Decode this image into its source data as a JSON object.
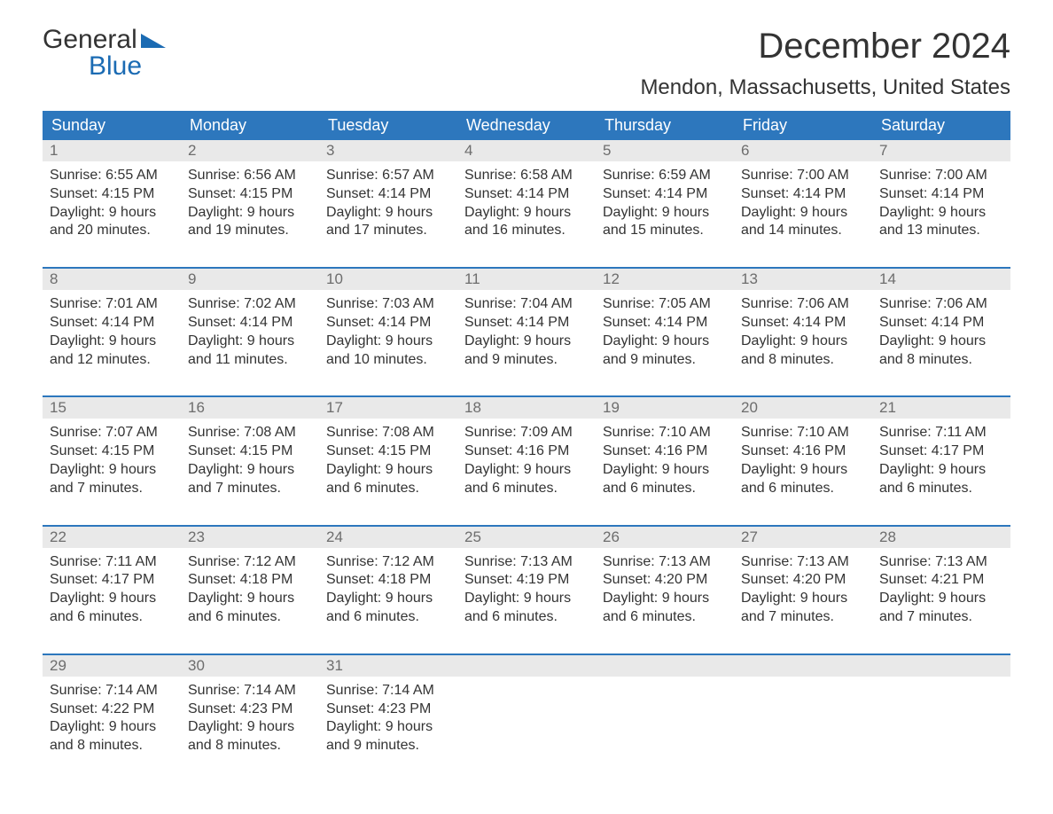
{
  "colors": {
    "header_bg": "#2d77bd",
    "header_text": "#ffffff",
    "daynum_bg": "#e9e9e9",
    "daynum_text": "#6d6d6d",
    "body_text": "#333333",
    "week_border": "#2d77bd",
    "logo_blue": "#1b6bb3",
    "page_bg": "#ffffff"
  },
  "typography": {
    "month_title_pt": 40,
    "location_pt": 24,
    "header_cell_pt": 18,
    "daynum_pt": 17,
    "body_pt": 16,
    "logo_pt": 30
  },
  "logo": {
    "line1": "General",
    "line2": "Blue"
  },
  "title": "December 2024",
  "location": "Mendon, Massachusetts, United States",
  "day_headers": [
    "Sunday",
    "Monday",
    "Tuesday",
    "Wednesday",
    "Thursday",
    "Friday",
    "Saturday"
  ],
  "weeks": [
    [
      {
        "n": "1",
        "sunrise": "Sunrise: 6:55 AM",
        "sunset": "Sunset: 4:15 PM",
        "d1": "Daylight: 9 hours",
        "d2": "and 20 minutes."
      },
      {
        "n": "2",
        "sunrise": "Sunrise: 6:56 AM",
        "sunset": "Sunset: 4:15 PM",
        "d1": "Daylight: 9 hours",
        "d2": "and 19 minutes."
      },
      {
        "n": "3",
        "sunrise": "Sunrise: 6:57 AM",
        "sunset": "Sunset: 4:14 PM",
        "d1": "Daylight: 9 hours",
        "d2": "and 17 minutes."
      },
      {
        "n": "4",
        "sunrise": "Sunrise: 6:58 AM",
        "sunset": "Sunset: 4:14 PM",
        "d1": "Daylight: 9 hours",
        "d2": "and 16 minutes."
      },
      {
        "n": "5",
        "sunrise": "Sunrise: 6:59 AM",
        "sunset": "Sunset: 4:14 PM",
        "d1": "Daylight: 9 hours",
        "d2": "and 15 minutes."
      },
      {
        "n": "6",
        "sunrise": "Sunrise: 7:00 AM",
        "sunset": "Sunset: 4:14 PM",
        "d1": "Daylight: 9 hours",
        "d2": "and 14 minutes."
      },
      {
        "n": "7",
        "sunrise": "Sunrise: 7:00 AM",
        "sunset": "Sunset: 4:14 PM",
        "d1": "Daylight: 9 hours",
        "d2": "and 13 minutes."
      }
    ],
    [
      {
        "n": "8",
        "sunrise": "Sunrise: 7:01 AM",
        "sunset": "Sunset: 4:14 PM",
        "d1": "Daylight: 9 hours",
        "d2": "and 12 minutes."
      },
      {
        "n": "9",
        "sunrise": "Sunrise: 7:02 AM",
        "sunset": "Sunset: 4:14 PM",
        "d1": "Daylight: 9 hours",
        "d2": "and 11 minutes."
      },
      {
        "n": "10",
        "sunrise": "Sunrise: 7:03 AM",
        "sunset": "Sunset: 4:14 PM",
        "d1": "Daylight: 9 hours",
        "d2": "and 10 minutes."
      },
      {
        "n": "11",
        "sunrise": "Sunrise: 7:04 AM",
        "sunset": "Sunset: 4:14 PM",
        "d1": "Daylight: 9 hours",
        "d2": "and 9 minutes."
      },
      {
        "n": "12",
        "sunrise": "Sunrise: 7:05 AM",
        "sunset": "Sunset: 4:14 PM",
        "d1": "Daylight: 9 hours",
        "d2": "and 9 minutes."
      },
      {
        "n": "13",
        "sunrise": "Sunrise: 7:06 AM",
        "sunset": "Sunset: 4:14 PM",
        "d1": "Daylight: 9 hours",
        "d2": "and 8 minutes."
      },
      {
        "n": "14",
        "sunrise": "Sunrise: 7:06 AM",
        "sunset": "Sunset: 4:14 PM",
        "d1": "Daylight: 9 hours",
        "d2": "and 8 minutes."
      }
    ],
    [
      {
        "n": "15",
        "sunrise": "Sunrise: 7:07 AM",
        "sunset": "Sunset: 4:15 PM",
        "d1": "Daylight: 9 hours",
        "d2": "and 7 minutes."
      },
      {
        "n": "16",
        "sunrise": "Sunrise: 7:08 AM",
        "sunset": "Sunset: 4:15 PM",
        "d1": "Daylight: 9 hours",
        "d2": "and 7 minutes."
      },
      {
        "n": "17",
        "sunrise": "Sunrise: 7:08 AM",
        "sunset": "Sunset: 4:15 PM",
        "d1": "Daylight: 9 hours",
        "d2": "and 6 minutes."
      },
      {
        "n": "18",
        "sunrise": "Sunrise: 7:09 AM",
        "sunset": "Sunset: 4:16 PM",
        "d1": "Daylight: 9 hours",
        "d2": "and 6 minutes."
      },
      {
        "n": "19",
        "sunrise": "Sunrise: 7:10 AM",
        "sunset": "Sunset: 4:16 PM",
        "d1": "Daylight: 9 hours",
        "d2": "and 6 minutes."
      },
      {
        "n": "20",
        "sunrise": "Sunrise: 7:10 AM",
        "sunset": "Sunset: 4:16 PM",
        "d1": "Daylight: 9 hours",
        "d2": "and 6 minutes."
      },
      {
        "n": "21",
        "sunrise": "Sunrise: 7:11 AM",
        "sunset": "Sunset: 4:17 PM",
        "d1": "Daylight: 9 hours",
        "d2": "and 6 minutes."
      }
    ],
    [
      {
        "n": "22",
        "sunrise": "Sunrise: 7:11 AM",
        "sunset": "Sunset: 4:17 PM",
        "d1": "Daylight: 9 hours",
        "d2": "and 6 minutes."
      },
      {
        "n": "23",
        "sunrise": "Sunrise: 7:12 AM",
        "sunset": "Sunset: 4:18 PM",
        "d1": "Daylight: 9 hours",
        "d2": "and 6 minutes."
      },
      {
        "n": "24",
        "sunrise": "Sunrise: 7:12 AM",
        "sunset": "Sunset: 4:18 PM",
        "d1": "Daylight: 9 hours",
        "d2": "and 6 minutes."
      },
      {
        "n": "25",
        "sunrise": "Sunrise: 7:13 AM",
        "sunset": "Sunset: 4:19 PM",
        "d1": "Daylight: 9 hours",
        "d2": "and 6 minutes."
      },
      {
        "n": "26",
        "sunrise": "Sunrise: 7:13 AM",
        "sunset": "Sunset: 4:20 PM",
        "d1": "Daylight: 9 hours",
        "d2": "and 6 minutes."
      },
      {
        "n": "27",
        "sunrise": "Sunrise: 7:13 AM",
        "sunset": "Sunset: 4:20 PM",
        "d1": "Daylight: 9 hours",
        "d2": "and 7 minutes."
      },
      {
        "n": "28",
        "sunrise": "Sunrise: 7:13 AM",
        "sunset": "Sunset: 4:21 PM",
        "d1": "Daylight: 9 hours",
        "d2": "and 7 minutes."
      }
    ],
    [
      {
        "n": "29",
        "sunrise": "Sunrise: 7:14 AM",
        "sunset": "Sunset: 4:22 PM",
        "d1": "Daylight: 9 hours",
        "d2": "and 8 minutes."
      },
      {
        "n": "30",
        "sunrise": "Sunrise: 7:14 AM",
        "sunset": "Sunset: 4:23 PM",
        "d1": "Daylight: 9 hours",
        "d2": "and 8 minutes."
      },
      {
        "n": "31",
        "sunrise": "Sunrise: 7:14 AM",
        "sunset": "Sunset: 4:23 PM",
        "d1": "Daylight: 9 hours",
        "d2": "and 9 minutes."
      },
      {
        "n": "",
        "sunrise": "",
        "sunset": "",
        "d1": "",
        "d2": ""
      },
      {
        "n": "",
        "sunrise": "",
        "sunset": "",
        "d1": "",
        "d2": ""
      },
      {
        "n": "",
        "sunrise": "",
        "sunset": "",
        "d1": "",
        "d2": ""
      },
      {
        "n": "",
        "sunrise": "",
        "sunset": "",
        "d1": "",
        "d2": ""
      }
    ]
  ]
}
